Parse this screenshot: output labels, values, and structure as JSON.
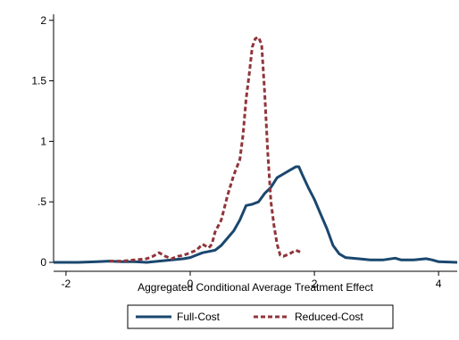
{
  "chart_data": {
    "type": "line",
    "title": "",
    "xlabel": "Aggregated Conditional Average Treatment Effect",
    "ylabel": "",
    "xlim": [
      -2.2,
      4.3
    ],
    "ylim": [
      0,
      2.05
    ],
    "x_ticks": [
      -2,
      0,
      2,
      4
    ],
    "x_tick_labels": [
      "-2",
      "0",
      "2",
      "4"
    ],
    "y_ticks": [
      0,
      0.5,
      1,
      1.5,
      2
    ],
    "y_tick_labels": [
      "0",
      ".5",
      "1",
      "1.5",
      "2"
    ],
    "grid": false,
    "legend_position": "bottom",
    "series": [
      {
        "name": "Full-Cost",
        "color": "#1a476f",
        "dash": "solid",
        "points": [
          [
            -2.2,
            0.0
          ],
          [
            -1.8,
            0.0
          ],
          [
            -1.5,
            0.005
          ],
          [
            -1.3,
            0.01
          ],
          [
            -1.1,
            0.005
          ],
          [
            -0.9,
            0.005
          ],
          [
            -0.7,
            0.0
          ],
          [
            -0.5,
            0.01
          ],
          [
            -0.3,
            0.02
          ],
          [
            -0.1,
            0.03
          ],
          [
            0.0,
            0.04
          ],
          [
            0.1,
            0.06
          ],
          [
            0.2,
            0.08
          ],
          [
            0.3,
            0.09
          ],
          [
            0.4,
            0.1
          ],
          [
            0.5,
            0.14
          ],
          [
            0.6,
            0.2
          ],
          [
            0.7,
            0.26
          ],
          [
            0.8,
            0.35
          ],
          [
            0.9,
            0.47
          ],
          [
            1.0,
            0.48
          ],
          [
            1.1,
            0.5
          ],
          [
            1.2,
            0.57
          ],
          [
            1.3,
            0.62
          ],
          [
            1.4,
            0.7
          ],
          [
            1.5,
            0.73
          ],
          [
            1.6,
            0.76
          ],
          [
            1.7,
            0.79
          ],
          [
            1.75,
            0.79
          ],
          [
            1.8,
            0.73
          ],
          [
            1.9,
            0.62
          ],
          [
            2.0,
            0.52
          ],
          [
            2.1,
            0.4
          ],
          [
            2.2,
            0.28
          ],
          [
            2.3,
            0.14
          ],
          [
            2.4,
            0.07
          ],
          [
            2.5,
            0.04
          ],
          [
            2.7,
            0.03
          ],
          [
            2.9,
            0.02
          ],
          [
            3.1,
            0.02
          ],
          [
            3.3,
            0.035
          ],
          [
            3.4,
            0.02
          ],
          [
            3.6,
            0.02
          ],
          [
            3.8,
            0.03
          ],
          [
            3.9,
            0.02
          ],
          [
            4.0,
            0.005
          ],
          [
            4.3,
            0.0
          ]
        ]
      },
      {
        "name": "Reduced-Cost",
        "color": "#90353b",
        "dash": "dashed",
        "points": [
          [
            -1.3,
            0.01
          ],
          [
            -1.1,
            0.01
          ],
          [
            -0.9,
            0.02
          ],
          [
            -0.7,
            0.03
          ],
          [
            -0.6,
            0.05
          ],
          [
            -0.5,
            0.08
          ],
          [
            -0.4,
            0.05
          ],
          [
            -0.3,
            0.03
          ],
          [
            -0.2,
            0.05
          ],
          [
            -0.1,
            0.06
          ],
          [
            0.0,
            0.08
          ],
          [
            0.1,
            0.1
          ],
          [
            0.2,
            0.15
          ],
          [
            0.3,
            0.12
          ],
          [
            0.35,
            0.15
          ],
          [
            0.4,
            0.25
          ],
          [
            0.5,
            0.35
          ],
          [
            0.6,
            0.55
          ],
          [
            0.7,
            0.72
          ],
          [
            0.8,
            0.85
          ],
          [
            0.85,
            1.05
          ],
          [
            0.9,
            1.35
          ],
          [
            0.95,
            1.55
          ],
          [
            1.0,
            1.78
          ],
          [
            1.05,
            1.85
          ],
          [
            1.1,
            1.86
          ],
          [
            1.15,
            1.8
          ],
          [
            1.2,
            1.4
          ],
          [
            1.25,
            0.9
          ],
          [
            1.3,
            0.5
          ],
          [
            1.35,
            0.3
          ],
          [
            1.4,
            0.15
          ],
          [
            1.45,
            0.06
          ],
          [
            1.5,
            0.05
          ],
          [
            1.6,
            0.07
          ],
          [
            1.7,
            0.1
          ],
          [
            1.75,
            0.09
          ],
          [
            1.8,
            0.08
          ]
        ]
      }
    ]
  }
}
